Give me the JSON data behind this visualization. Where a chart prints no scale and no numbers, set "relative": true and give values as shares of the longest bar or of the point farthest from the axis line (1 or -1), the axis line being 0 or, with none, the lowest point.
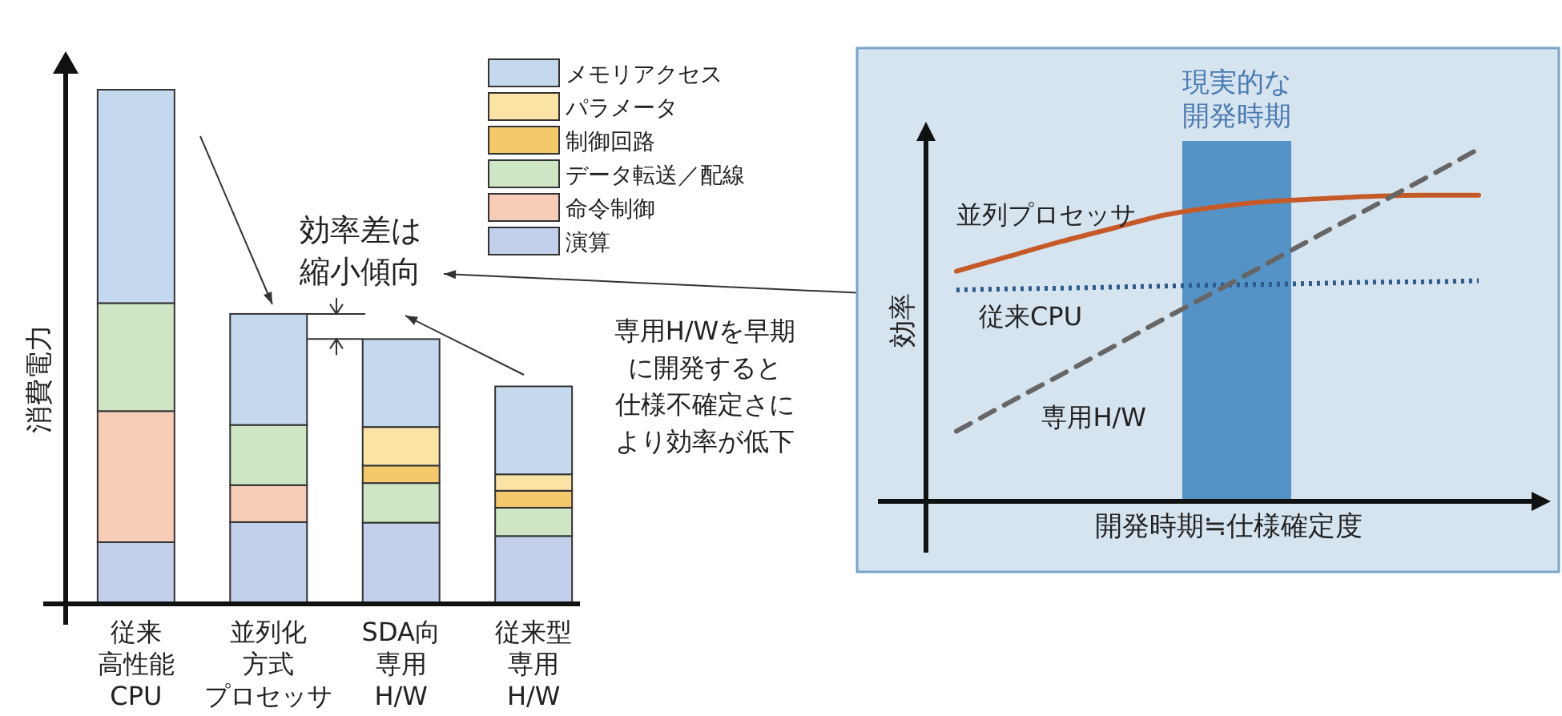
{
  "chart_data": [
    {
      "type": "bar",
      "stacked": true,
      "relative": true,
      "ylabel": "消費電力",
      "categories": [
        "従来高性能CPU",
        "並列化方式プロセッサ",
        "SDA向専用H/W",
        "従来型専用H/W"
      ],
      "series": [
        {
          "name": "演算",
          "color": "#c2d0ec",
          "values": [
            0.12,
            0.159,
            0.158,
            0.132
          ]
        },
        {
          "name": "命令制御",
          "color": "#f8cdb8",
          "values": [
            0.255,
            0.072,
            null,
            null
          ]
        },
        {
          "name": "データ転送／配線",
          "color": "#cfe6c4",
          "values": [
            0.21,
            0.117,
            0.077,
            0.055
          ]
        },
        {
          "name": "制御回路",
          "color": "#f3c96c",
          "values": [
            null,
            null,
            0.034,
            0.033
          ]
        },
        {
          "name": "パラメータ",
          "color": "#fbe3a6",
          "values": [
            null,
            null,
            0.075,
            0.032
          ]
        },
        {
          "name": "メモリアクセス",
          "color": "#c5d9ee",
          "values": [
            0.415,
            0.216,
            0.171,
            0.171
          ]
        }
      ],
      "legend": "top right",
      "annotations": [
        "効率差は縮小傾向",
        "専用H/Wを早期に開発すると仕様不確定さにより効率が低下"
      ]
    },
    {
      "type": "line",
      "relative": true,
      "xlabel": "開発時期≒仕様確定度",
      "ylabel": "効率",
      "categories": [
        null,
        null,
        null,
        null,
        null,
        null,
        null,
        null,
        null,
        null,
        null
      ],
      "series": [
        {
          "name": "並列プロセッサ",
          "color": "#c55a28",
          "line_style": "solid",
          "values": [
            0.653,
            0.695,
            0.737,
            0.775,
            0.813,
            0.836,
            0.851,
            0.859,
            0.866,
            0.869,
            0.869
          ]
        },
        {
          "name": "従来CPU",
          "color": "#2e5a8a",
          "line_style": "dotted",
          "values": [
            0.6,
            0.603,
            0.605,
            0.608,
            0.611,
            0.614,
            0.616,
            0.619,
            0.622,
            0.623,
            0.626
          ]
        },
        {
          "name": "専用H/W",
          "color": "#666666",
          "line_style": "dashed",
          "values": [
            0.199,
            0.28,
            0.359,
            0.439,
            0.52,
            0.599,
            0.679,
            0.76,
            0.839,
            0.919,
            1.0
          ]
        }
      ],
      "annotations": [
        "現実的な開発時期"
      ],
      "legend": false
    }
  ]
}
